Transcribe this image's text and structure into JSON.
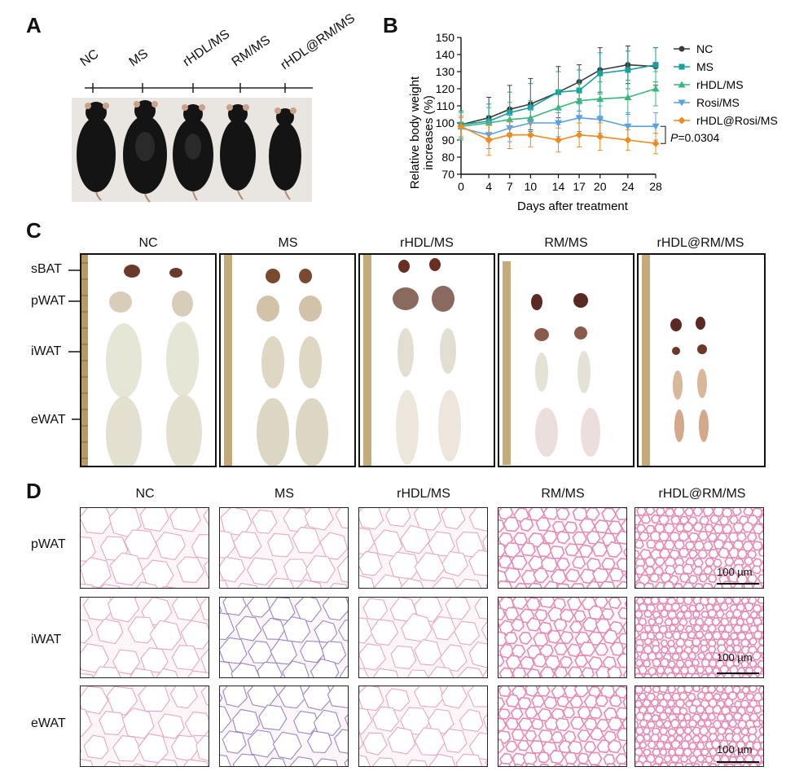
{
  "panels": {
    "A": "A",
    "B": "B",
    "C": "C",
    "D": "D"
  },
  "panelA": {
    "groups": [
      "NC",
      "MS",
      "rHDL/MS",
      "RM/MS",
      "rHDL@RM/MS"
    ]
  },
  "panelC": {
    "groups": [
      "NC",
      "MS",
      "rHDL/MS",
      "RM/MS",
      "rHDL@RM/MS"
    ],
    "tissues": [
      "sBAT",
      "pWAT",
      "iWAT",
      "eWAT"
    ]
  },
  "panelD": {
    "groups": [
      "NC",
      "MS",
      "rHDL/MS",
      "RM/MS",
      "rHDL@RM/MS"
    ],
    "rows": [
      "pWAT",
      "iWAT",
      "eWAT"
    ],
    "scalebar": "100 µm"
  },
  "chart_data": {
    "type": "line",
    "xlabel": "Days after treatment",
    "ylabel_line1": "Relative body weight",
    "ylabel_line2": "increases (%)",
    "x": [
      0,
      4,
      7,
      10,
      14,
      17,
      20,
      24,
      28
    ],
    "xlim": [
      0,
      28
    ],
    "ylim": [
      70,
      150
    ],
    "yticks": [
      70,
      80,
      90,
      100,
      110,
      120,
      130,
      140,
      150
    ],
    "legend_position": "right",
    "annotation": {
      "italic": "P",
      "text": "=0.0304"
    },
    "series": [
      {
        "name": "NC",
        "color": "#3a3a3a",
        "marker": "circle",
        "values": [
          99,
          103,
          108,
          111,
          118,
          124,
          131,
          134,
          133
        ],
        "errors": [
          8,
          12,
          14,
          15,
          15,
          10,
          13,
          11,
          11
        ]
      },
      {
        "name": "MS",
        "color": "#1a9e9e",
        "marker": "square",
        "values": [
          99,
          101,
          106,
          109,
          118,
          119,
          129,
          131,
          134
        ],
        "errors": [
          8,
          10,
          12,
          14,
          12,
          12,
          12,
          11,
          10
        ]
      },
      {
        "name": "rHDL/MS",
        "color": "#35b87a",
        "marker": "triangle-up",
        "values": [
          98,
          100,
          102,
          103,
          109,
          113,
          114,
          115,
          120
        ],
        "errors": [
          8,
          9,
          10,
          10,
          10,
          10,
          10,
          10,
          10
        ]
      },
      {
        "name": "Rosi/MS",
        "color": "#5aa0e6",
        "marker": "triangle-down",
        "values": [
          97,
          93,
          97,
          100,
          100,
          103,
          102,
          98,
          98
        ],
        "errors": [
          6,
          8,
          8,
          8,
          8,
          8,
          8,
          8,
          8
        ]
      },
      {
        "name": "rHDL@Rosi/MS",
        "color": "#f08c1e",
        "marker": "diamond",
        "values": [
          98,
          90,
          93,
          93,
          90,
          93,
          92,
          90,
          88
        ],
        "errors": [
          6,
          9,
          8,
          7,
          7,
          7,
          8,
          6,
          6
        ]
      }
    ]
  }
}
